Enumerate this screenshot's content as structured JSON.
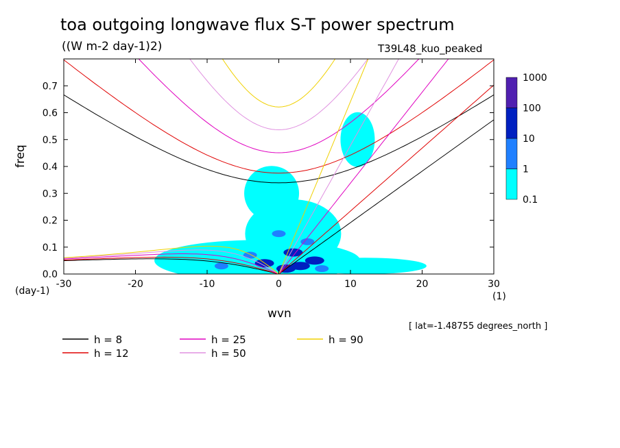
{
  "title": "toa outgoing longwave flux S-T power spectrum",
  "subtitle": "((W m-2 day-1)2)",
  "run_label": "T39L48_kuo_peaked",
  "lat_note": "[ lat=-1.48755 degrees_north ]",
  "chart_data": {
    "type": "contour",
    "xlabel": "wvn",
    "ylabel": "freq",
    "x_unit": "(1)",
    "y_unit": "(day-1)",
    "xlim": [
      -30,
      30
    ],
    "ylim": [
      0,
      0.8
    ],
    "xticks": [
      "-30",
      "-20",
      "-10",
      "0",
      "10",
      "20",
      "30"
    ],
    "yticks": [
      "0.0",
      "0.1",
      "0.2",
      "0.3",
      "0.4",
      "0.5",
      "0.6",
      "0.7"
    ],
    "colorbar": {
      "levels": [
        "0.1",
        "1",
        "10",
        "100",
        "1000"
      ],
      "colors": [
        "#00ffff",
        "#2080ff",
        "#0020c0",
        "#5020b0"
      ]
    },
    "series": [
      {
        "name": "h =  8",
        "color": "#000000",
        "h": 8
      },
      {
        "name": "h = 12",
        "color": "#e00000",
        "h": 12
      },
      {
        "name": "h = 25",
        "color": "#e000c0",
        "h": 25
      },
      {
        "name": "h = 50",
        "color": "#e090e0",
        "h": 50
      },
      {
        "name": "h = 90",
        "color": "#f0d000",
        "h": 90
      }
    ],
    "spectral_blobs": [
      {
        "x": -2,
        "y": 0.04,
        "level": 2
      },
      {
        "x": 3,
        "y": 0.03,
        "level": 2
      },
      {
        "x": 5,
        "y": 0.05,
        "level": 2
      },
      {
        "x": 2,
        "y": 0.08,
        "level": 2
      },
      {
        "x": -8,
        "y": 0.03,
        "level": 1
      },
      {
        "x": -4,
        "y": 0.07,
        "level": 1
      },
      {
        "x": 4,
        "y": 0.12,
        "level": 1
      },
      {
        "x": 0,
        "y": 0.15,
        "level": 1
      },
      {
        "x": 6,
        "y": 0.02,
        "level": 1
      },
      {
        "x": 1,
        "y": 0.02,
        "level": 2
      }
    ]
  }
}
